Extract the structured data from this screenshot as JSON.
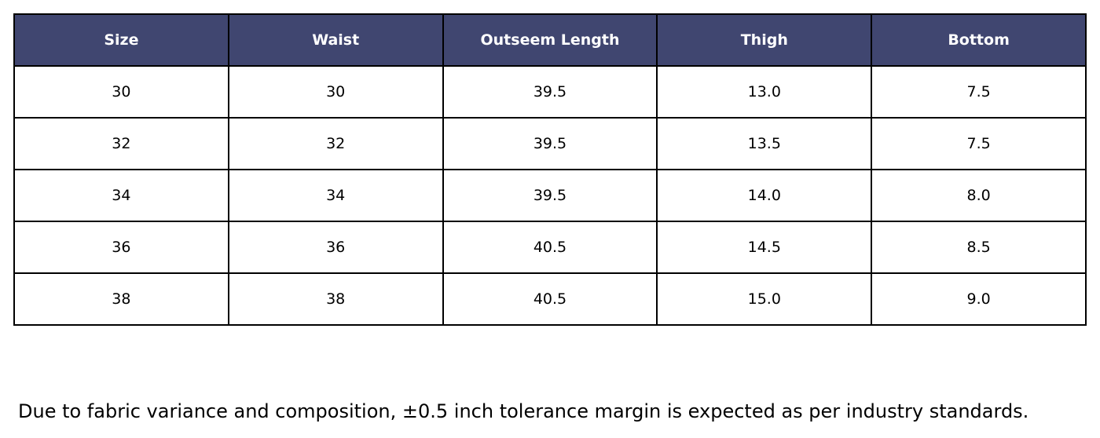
{
  "table": {
    "header": [
      "Size",
      "Waist",
      "Outseem Length",
      "Thigh",
      "Bottom"
    ],
    "rows": [
      [
        "30",
        "30",
        "39.5",
        "13.0",
        "7.5"
      ],
      [
        "32",
        "32",
        "39.5",
        "13.5",
        "7.5"
      ],
      [
        "34",
        "34",
        "39.5",
        "14.0",
        "8.0"
      ],
      [
        "36",
        "36",
        "40.5",
        "14.5",
        "8.5"
      ],
      [
        "38",
        "38",
        "40.5",
        "15.0",
        "9.0"
      ]
    ]
  },
  "note": "Due to fabric variance and composition, ±0.5 inch tolerance margin is expected as per industry standards."
}
